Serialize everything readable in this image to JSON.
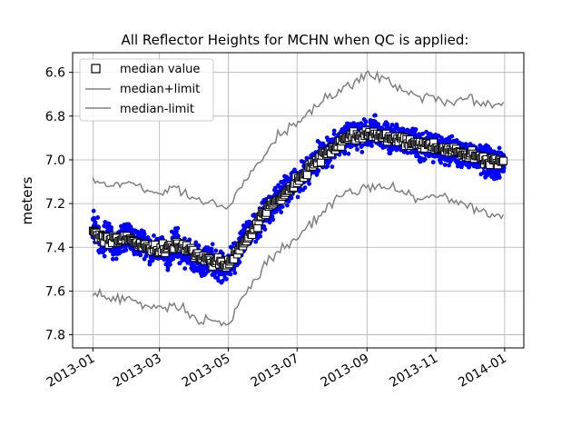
{
  "chart_data": {
    "type": "scatter",
    "title": "All Reflector Heights for MCHN when QC is applied:",
    "xlabel": "",
    "ylabel": "meters",
    "x_axis_type": "date",
    "xlim": [
      "2012-12-14",
      "2014-01-18"
    ],
    "ylim": [
      7.86,
      6.51
    ],
    "y_inverted": true,
    "grid": true,
    "x_ticks": [
      "2013-01",
      "2013-03",
      "2013-05",
      "2013-07",
      "2013-09",
      "2013-11",
      "2014-01"
    ],
    "y_ticks": [
      "6.6",
      "6.8",
      "7.0",
      "7.2",
      "7.4",
      "7.6",
      "7.8"
    ],
    "legend_position": "top-left",
    "legend": [
      "median value",
      "median+limit",
      "median-limit"
    ],
    "colors": {
      "points": "#0000ff",
      "median_marker_fill": "#ffffff",
      "median_marker_edge": "#000000",
      "limit_lines": "#808080",
      "grid": "#b0b0b0"
    },
    "series": [
      {
        "name": "median value",
        "marker": "square",
        "x": [
          "2013-01-01",
          "2013-01-15",
          "2013-02-01",
          "2013-02-15",
          "2013-03-01",
          "2013-03-15",
          "2013-04-01",
          "2013-04-15",
          "2013-05-01",
          "2013-05-15",
          "2013-06-01",
          "2013-06-15",
          "2013-07-01",
          "2013-07-15",
          "2013-08-01",
          "2013-08-15",
          "2013-09-01",
          "2013-09-15",
          "2013-10-01",
          "2013-10-15",
          "2013-11-01",
          "2013-11-15",
          "2013-12-01",
          "2013-12-15",
          "2013-12-31"
        ],
        "y": [
          7.33,
          7.37,
          7.36,
          7.39,
          7.42,
          7.38,
          7.43,
          7.46,
          7.48,
          7.38,
          7.25,
          7.18,
          7.1,
          7.02,
          6.95,
          6.9,
          6.88,
          6.89,
          6.91,
          6.93,
          6.94,
          6.96,
          6.98,
          7.0,
          7.01
        ]
      },
      {
        "name": "median+limit",
        "x": [
          "2013-01-01",
          "2013-01-15",
          "2013-02-01",
          "2013-02-15",
          "2013-03-01",
          "2013-03-15",
          "2013-04-01",
          "2013-04-15",
          "2013-05-01",
          "2013-05-15",
          "2013-06-01",
          "2013-06-15",
          "2013-07-01",
          "2013-07-15",
          "2013-08-01",
          "2013-08-15",
          "2013-09-01",
          "2013-09-15",
          "2013-10-01",
          "2013-10-15",
          "2013-11-01",
          "2013-11-15",
          "2013-12-01",
          "2013-12-15",
          "2013-12-31"
        ],
        "y": [
          7.08,
          7.12,
          7.1,
          7.14,
          7.15,
          7.12,
          7.18,
          7.2,
          7.22,
          7.1,
          6.98,
          6.88,
          6.84,
          6.76,
          6.7,
          6.66,
          6.62,
          6.63,
          6.68,
          6.7,
          6.72,
          6.74,
          6.72,
          6.75,
          6.74
        ]
      },
      {
        "name": "median-limit",
        "x": [
          "2013-01-01",
          "2013-01-15",
          "2013-02-01",
          "2013-02-15",
          "2013-03-01",
          "2013-03-15",
          "2013-04-01",
          "2013-04-15",
          "2013-05-01",
          "2013-05-15",
          "2013-06-01",
          "2013-06-15",
          "2013-07-01",
          "2013-07-15",
          "2013-08-01",
          "2013-08-15",
          "2013-09-01",
          "2013-09-15",
          "2013-10-01",
          "2013-10-15",
          "2013-11-01",
          "2013-11-15",
          "2013-12-01",
          "2013-12-15",
          "2013-12-31"
        ],
        "y": [
          7.6,
          7.64,
          7.62,
          7.66,
          7.68,
          7.66,
          7.72,
          7.74,
          7.76,
          7.62,
          7.5,
          7.42,
          7.36,
          7.28,
          7.2,
          7.15,
          7.12,
          7.12,
          7.14,
          7.18,
          7.16,
          7.18,
          7.22,
          7.24,
          7.26
        ]
      },
      {
        "name": "",
        "marker": "dot",
        "x": [
          "2013-01-01",
          "2013-01-08",
          "2013-01-15",
          "2013-01-22",
          "2013-02-01",
          "2013-02-08",
          "2013-02-15",
          "2013-02-22",
          "2013-03-01",
          "2013-03-08",
          "2013-03-15",
          "2013-03-22",
          "2013-04-01",
          "2013-04-08",
          "2013-04-15",
          "2013-04-22",
          "2013-05-01",
          "2013-05-08",
          "2013-05-15",
          "2013-05-22",
          "2013-06-01",
          "2013-06-08",
          "2013-06-15",
          "2013-06-22",
          "2013-07-01",
          "2013-07-08",
          "2013-07-15",
          "2013-07-22",
          "2013-08-01",
          "2013-08-08",
          "2013-08-15",
          "2013-08-22",
          "2013-09-01",
          "2013-09-08",
          "2013-09-15",
          "2013-09-22",
          "2013-10-01",
          "2013-10-08",
          "2013-10-15",
          "2013-10-22",
          "2013-11-01",
          "2013-11-08",
          "2013-11-15",
          "2013-11-22",
          "2013-12-01",
          "2013-12-08",
          "2013-12-15",
          "2013-12-22",
          "2013-12-31"
        ],
        "y": [
          7.3,
          7.38,
          7.35,
          7.4,
          7.34,
          7.38,
          7.37,
          7.42,
          7.4,
          7.45,
          7.37,
          7.42,
          7.44,
          7.47,
          7.45,
          7.49,
          7.48,
          7.44,
          7.36,
          7.32,
          7.26,
          7.22,
          7.18,
          7.14,
          7.1,
          7.06,
          7.02,
          6.98,
          6.95,
          6.92,
          6.9,
          6.89,
          6.88,
          6.87,
          6.89,
          6.9,
          6.91,
          6.92,
          6.93,
          6.94,
          6.94,
          6.96,
          6.96,
          6.97,
          6.98,
          7.0,
          7.0,
          7.02,
          7.01
        ]
      }
    ]
  }
}
